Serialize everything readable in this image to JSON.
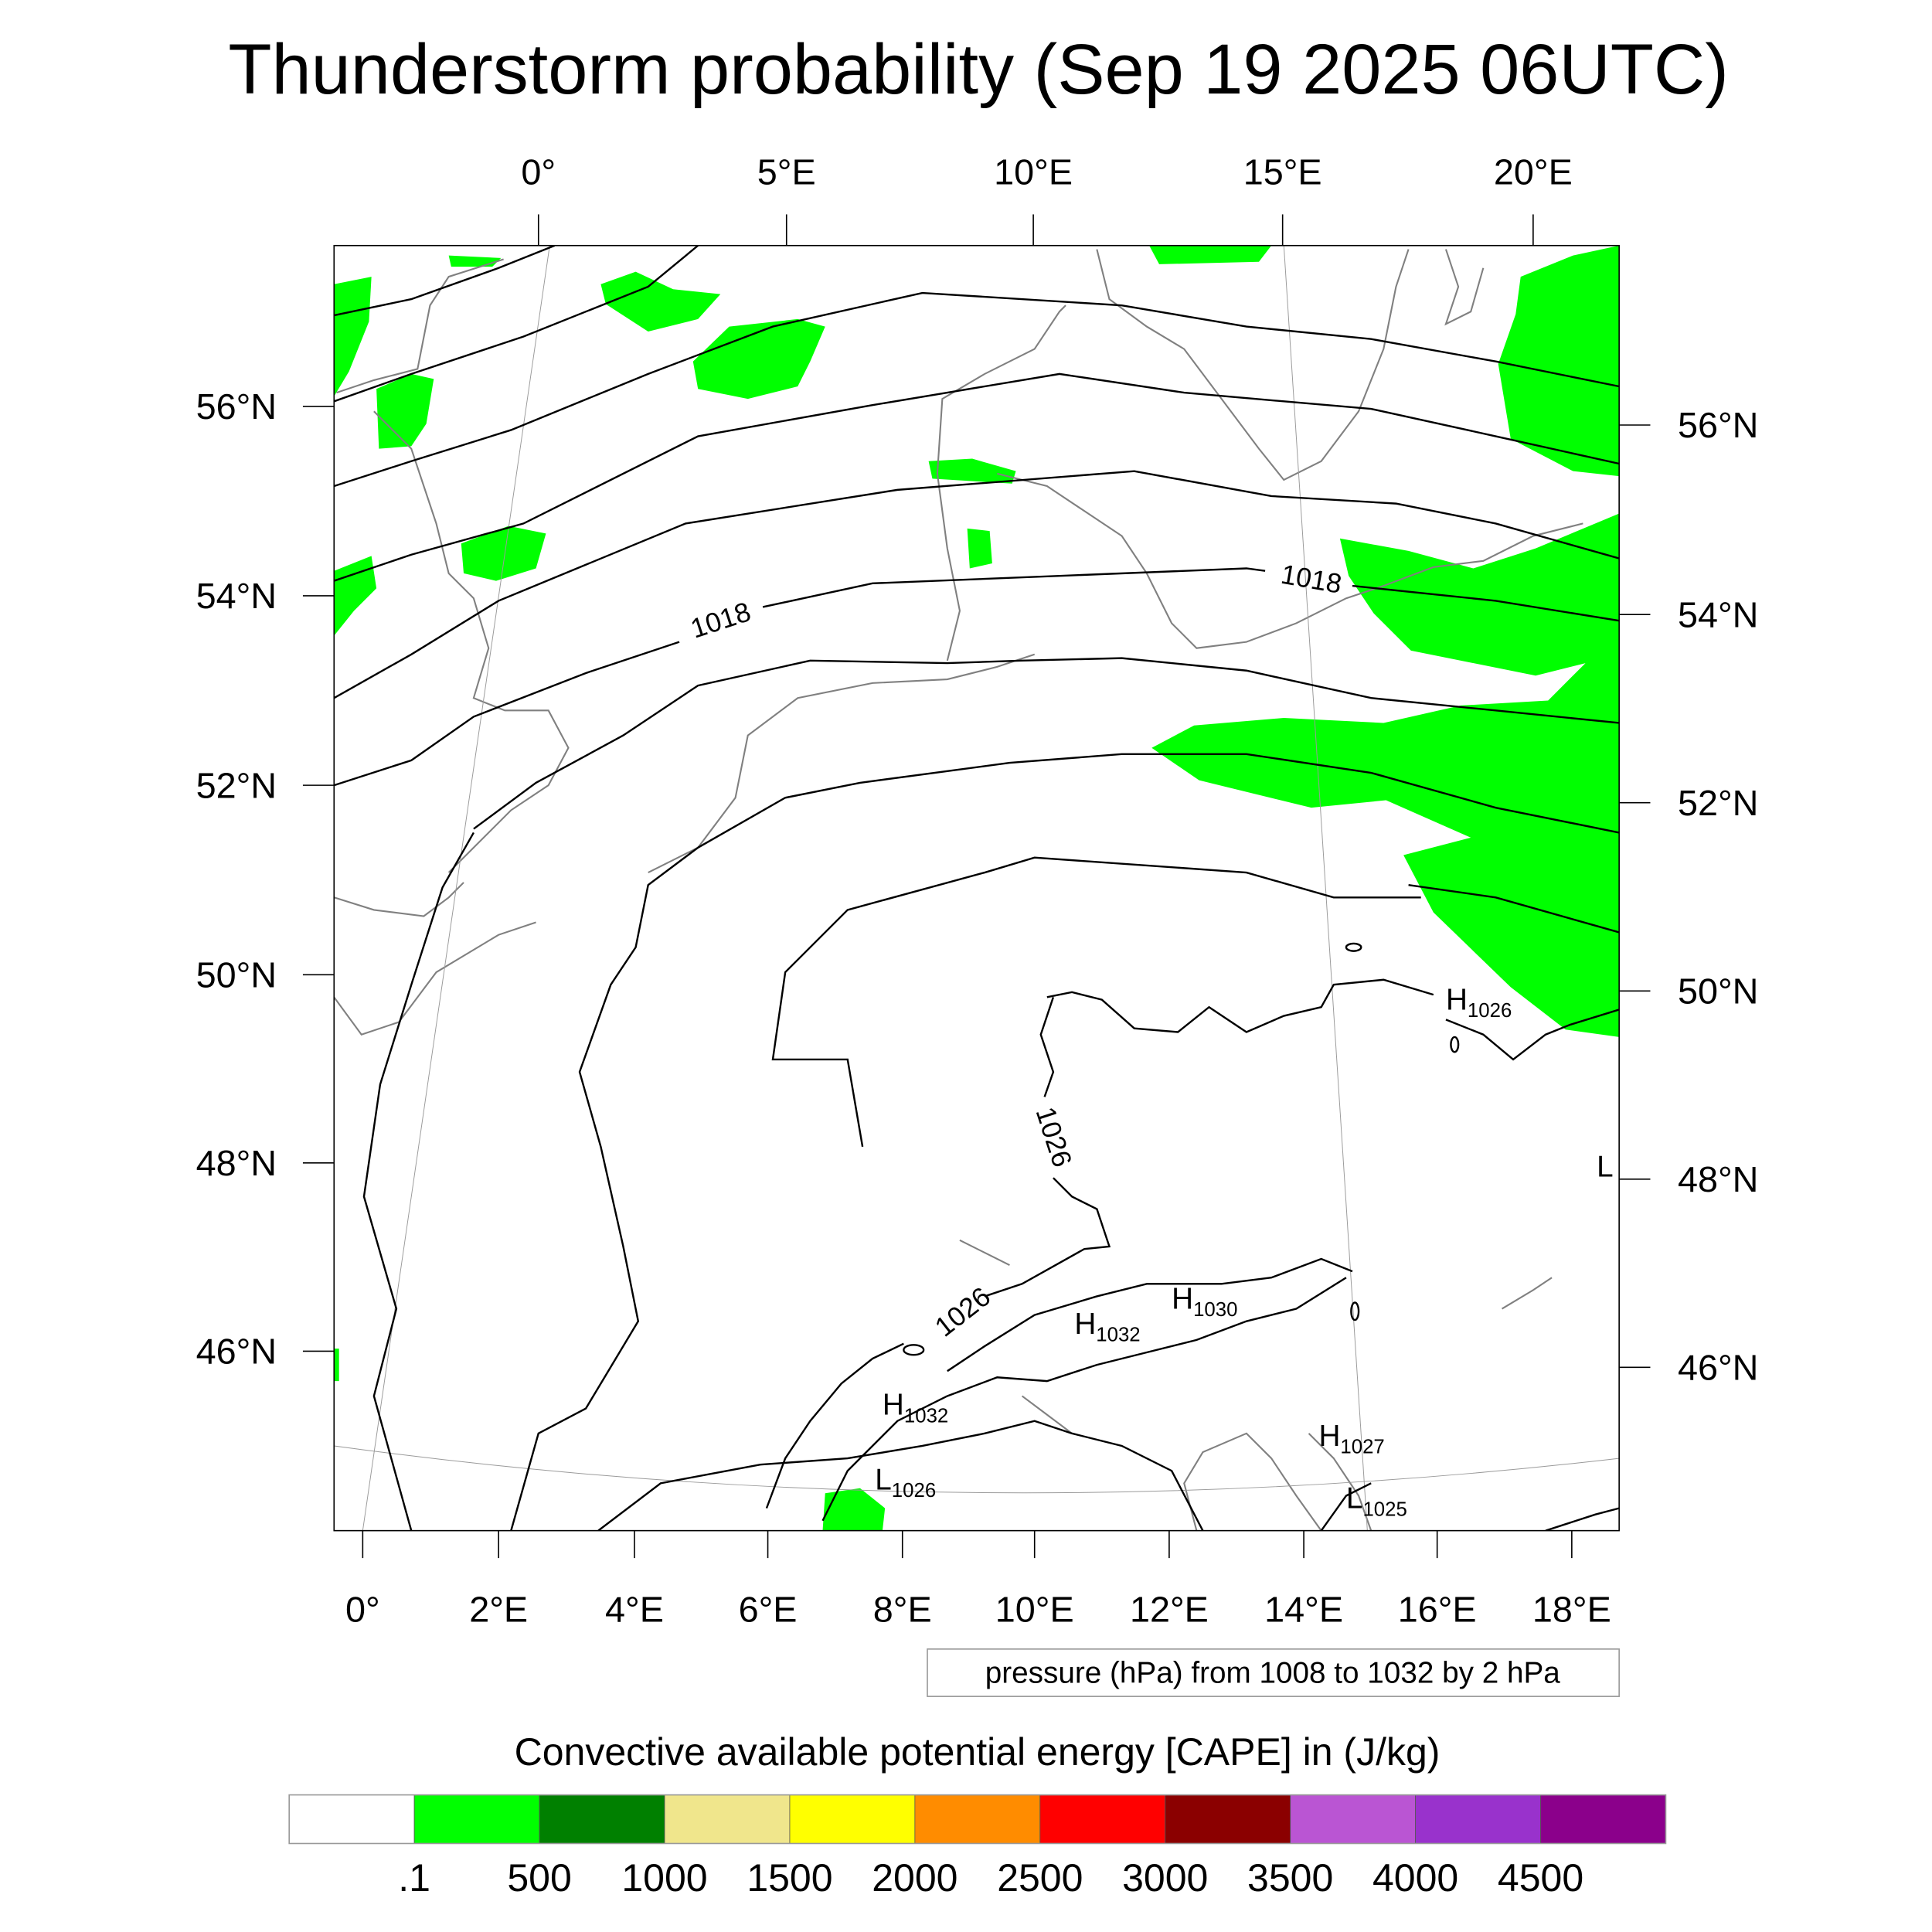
{
  "title": "Thunderstorm probability (Sep 19 2025 06UTC)",
  "axes": {
    "top_lon_labels": [
      "0°",
      "5°E",
      "10°E",
      "15°E",
      "20°E"
    ],
    "left_lat_labels": [
      "56°N",
      "54°N",
      "52°N",
      "50°N",
      "48°N",
      "46°N"
    ],
    "right_lat_labels": [
      "56°N",
      "54°N",
      "52°N",
      "50°N",
      "48°N",
      "46°N"
    ],
    "bottom_lon_labels": [
      "0°",
      "2°E",
      "4°E",
      "6°E",
      "8°E",
      "10°E",
      "12°E",
      "14°E",
      "16°E",
      "18°E"
    ]
  },
  "contour_labels": [
    "1018",
    "1018",
    "1026",
    "1026"
  ],
  "pressure_centers": [
    {
      "letter": "H",
      "value": "1026"
    },
    {
      "letter": "H",
      "value": "1030"
    },
    {
      "letter": "H",
      "value": "1032"
    },
    {
      "letter": "H",
      "value": "1032"
    },
    {
      "letter": "H",
      "value": "1027"
    },
    {
      "letter": "L",
      "value": "1026"
    },
    {
      "letter": "L",
      "value": "1025"
    },
    {
      "letter": "L",
      "value": ""
    }
  ],
  "pressure_note": "pressure (hPa) from 1008 to 1032 by 2 hPa",
  "colorbar": {
    "title": "Convective available potential energy [CAPE] in (J/kg)",
    "colors": [
      "#ffffff",
      "#00ff00",
      "#008000",
      "#f0e68c",
      "#ffff00",
      "#ff8c00",
      "#ff0000",
      "#8b0000",
      "#ba55d3",
      "#9932cc",
      "#8b008b"
    ],
    "labels": [
      ".1",
      "500",
      "1000",
      "1500",
      "2000",
      "2500",
      "3000",
      "3500",
      "4000",
      "4500"
    ]
  },
  "cape_fill_color": "#00ff00"
}
